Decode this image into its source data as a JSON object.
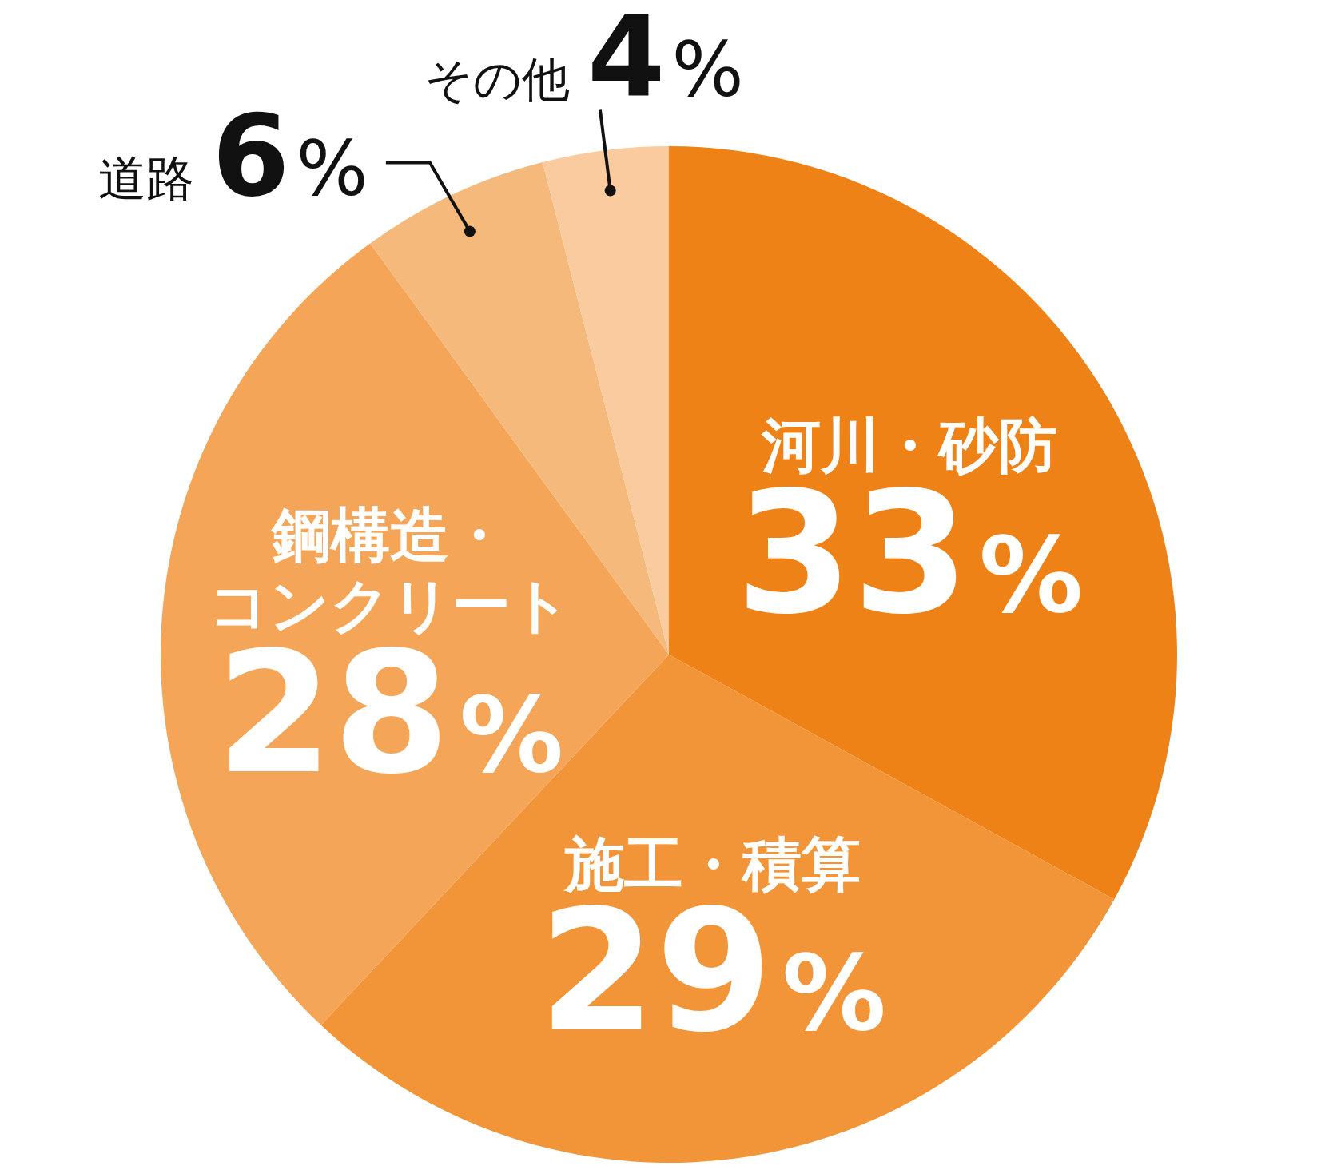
{
  "chart_data": {
    "type": "pie",
    "categories": [
      "河川・砂防",
      "施工・積算",
      "鋼構造・コンクリート",
      "道路",
      "その他"
    ],
    "values": [
      33,
      29,
      28,
      6,
      4
    ],
    "colors": [
      "#ef8216",
      "#f29539",
      "#f4a557",
      "#f6b97c",
      "#f9cb9f"
    ],
    "value_labels": [
      "33%",
      "29%",
      "28%",
      "6%",
      "4%"
    ]
  }
}
